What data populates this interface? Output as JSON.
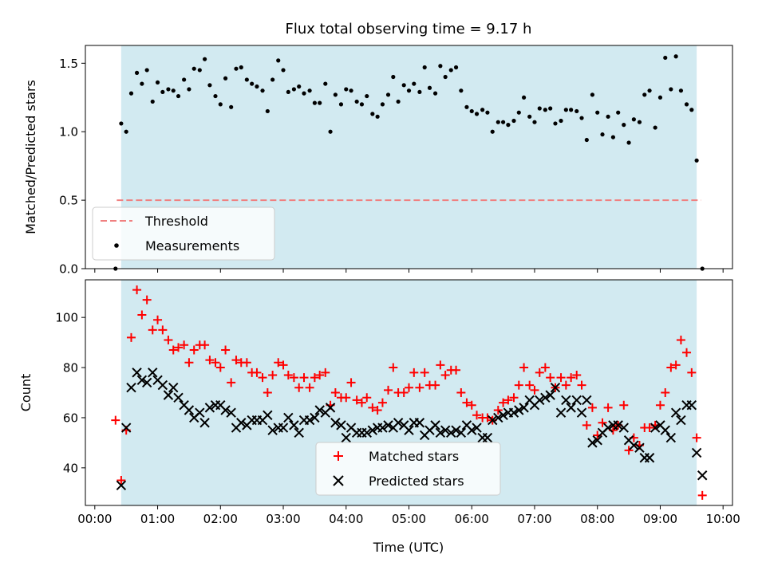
{
  "chart_data": {
    "title": "Flux total observing time = 9.17 h",
    "xlabel": "Time (UTC)",
    "x_unit": "hours UTC",
    "xlim": [
      -0.15,
      10.15
    ],
    "x_ticks": [
      0,
      1,
      2,
      3,
      4,
      5,
      6,
      7,
      8,
      9,
      10
    ],
    "x_tick_labels": [
      "00:00",
      "01:00",
      "02:00",
      "03:00",
      "04:00",
      "05:00",
      "06:00",
      "07:00",
      "08:00",
      "09:00",
      "10:00"
    ],
    "span": {
      "start": 0.42,
      "end": 9.58,
      "color": "#add8e6"
    },
    "panels": [
      {
        "type": "scatter",
        "ylabel": "Matched/Predicted stars",
        "ylim": [
          0,
          1.63
        ],
        "y_ticks": [
          0,
          0.5,
          1.0,
          1.5
        ],
        "y_tick_labels": [
          "0.0",
          "0.5",
          "1.0",
          "1.5"
        ],
        "grid": false,
        "legend_position": "lower-left",
        "threshold": {
          "name": "Threshold",
          "y": 0.5,
          "x": [
            0.35,
            9.65
          ],
          "color": "#f08080"
        },
        "series": [
          {
            "name": "Measurements",
            "marker": "dot",
            "color": "#000000",
            "x": [
              0.33,
              0.42,
              0.5,
              0.58,
              0.67,
              0.75,
              0.83,
              0.92,
              1.0,
              1.08,
              1.17,
              1.25,
              1.33,
              1.42,
              1.5,
              1.58,
              1.67,
              1.75,
              1.83,
              1.92,
              2.0,
              2.08,
              2.17,
              2.25,
              2.33,
              2.42,
              2.5,
              2.58,
              2.67,
              2.75,
              2.83,
              2.92,
              3.0,
              3.08,
              3.17,
              3.25,
              3.33,
              3.42,
              3.5,
              3.58,
              3.67,
              3.75,
              3.83,
              3.92,
              4.0,
              4.08,
              4.17,
              4.25,
              4.33,
              4.42,
              4.5,
              4.58,
              4.67,
              4.75,
              4.83,
              4.92,
              5.0,
              5.08,
              5.17,
              5.25,
              5.33,
              5.42,
              5.5,
              5.58,
              5.67,
              5.75,
              5.83,
              5.92,
              6.0,
              6.08,
              6.17,
              6.25,
              6.33,
              6.42,
              6.5,
              6.58,
              6.67,
              6.75,
              6.83,
              6.92,
              7.0,
              7.08,
              7.17,
              7.25,
              7.33,
              7.42,
              7.5,
              7.58,
              7.67,
              7.75,
              7.83,
              7.92,
              8.0,
              8.08,
              8.17,
              8.25,
              8.33,
              8.42,
              8.5,
              8.58,
              8.67,
              8.75,
              8.83,
              8.92,
              9.0,
              9.08,
              9.17,
              9.25,
              9.33,
              9.42,
              9.5,
              9.58,
              9.67
            ],
            "y": [
              0.0,
              1.06,
              1.0,
              1.28,
              1.43,
              1.35,
              1.45,
              1.22,
              1.36,
              1.29,
              1.31,
              1.3,
              1.26,
              1.38,
              1.31,
              1.46,
              1.45,
              1.53,
              1.34,
              1.26,
              1.2,
              1.39,
              1.18,
              1.46,
              1.47,
              1.38,
              1.35,
              1.33,
              1.3,
              1.15,
              1.38,
              1.52,
              1.45,
              1.29,
              1.31,
              1.33,
              1.28,
              1.3,
              1.21,
              1.21,
              1.35,
              1.0,
              1.27,
              1.2,
              1.31,
              1.3,
              1.22,
              1.2,
              1.26,
              1.13,
              1.11,
              1.2,
              1.27,
              1.4,
              1.22,
              1.34,
              1.3,
              1.35,
              1.29,
              1.47,
              1.32,
              1.28,
              1.48,
              1.4,
              1.45,
              1.47,
              1.3,
              1.18,
              1.15,
              1.13,
              1.16,
              1.14,
              1.0,
              1.07,
              1.07,
              1.05,
              1.08,
              1.14,
              1.25,
              1.11,
              1.07,
              1.17,
              1.16,
              1.17,
              1.06,
              1.08,
              1.16,
              1.16,
              1.15,
              1.1,
              0.94,
              1.27,
              1.14,
              0.98,
              1.11,
              0.96,
              1.14,
              1.05,
              0.92,
              1.09,
              1.07,
              1.27,
              1.3,
              1.03,
              1.25,
              1.54,
              1.31,
              1.55,
              1.3,
              1.2,
              1.16,
              0.79,
              0.0
            ]
          }
        ]
      },
      {
        "type": "scatter",
        "ylabel": "Count",
        "ylim": [
          25,
          115
        ],
        "y_ticks": [
          40,
          60,
          80,
          100
        ],
        "y_tick_labels": [
          "40",
          "60",
          "80",
          "100"
        ],
        "grid": false,
        "legend_position": "lower-center",
        "series": [
          {
            "name": "Matched stars",
            "marker": "plus",
            "color": "#ff0000",
            "x": [
              0.33,
              0.42,
              0.5,
              0.58,
              0.67,
              0.75,
              0.83,
              0.92,
              1.0,
              1.08,
              1.17,
              1.25,
              1.33,
              1.42,
              1.5,
              1.58,
              1.67,
              1.75,
              1.83,
              1.92,
              2.0,
              2.08,
              2.17,
              2.25,
              2.33,
              2.42,
              2.5,
              2.58,
              2.67,
              2.75,
              2.83,
              2.92,
              3.0,
              3.08,
              3.17,
              3.25,
              3.33,
              3.42,
              3.5,
              3.58,
              3.67,
              3.75,
              3.83,
              3.92,
              4.0,
              4.08,
              4.17,
              4.25,
              4.33,
              4.42,
              4.5,
              4.58,
              4.67,
              4.75,
              4.83,
              4.92,
              5.0,
              5.08,
              5.17,
              5.25,
              5.33,
              5.42,
              5.5,
              5.58,
              5.67,
              5.75,
              5.83,
              5.92,
              6.0,
              6.08,
              6.17,
              6.25,
              6.33,
              6.42,
              6.5,
              6.58,
              6.67,
              6.75,
              6.83,
              6.92,
              7.0,
              7.08,
              7.17,
              7.25,
              7.33,
              7.42,
              7.5,
              7.58,
              7.67,
              7.75,
              7.83,
              7.92,
              8.0,
              8.08,
              8.17,
              8.25,
              8.33,
              8.42,
              8.5,
              8.58,
              8.67,
              8.75,
              8.83,
              8.92,
              9.0,
              9.08,
              9.17,
              9.25,
              9.33,
              9.42,
              9.5,
              9.58,
              9.67
            ],
            "y": [
              59,
              35,
              55,
              92,
              111,
              101,
              107,
              95,
              99,
              95,
              91,
              87,
              88,
              89,
              82,
              87,
              89,
              89,
              83,
              82,
              80,
              87,
              74,
              83,
              82,
              82,
              78,
              78,
              76,
              70,
              77,
              82,
              81,
              77,
              76,
              72,
              76,
              72,
              76,
              77,
              78,
              65,
              70,
              68,
              68,
              74,
              67,
              66,
              68,
              64,
              63,
              66,
              71,
              80,
              70,
              70,
              72,
              78,
              72,
              78,
              73,
              73,
              81,
              77,
              79,
              79,
              70,
              66,
              65,
              61,
              60,
              60,
              59,
              63,
              66,
              67,
              68,
              73,
              80,
              73,
              71,
              78,
              80,
              76,
              72,
              76,
              73,
              76,
              77,
              73,
              57,
              64,
              53,
              58,
              64,
              55,
              57,
              65,
              47,
              52,
              49,
              56,
              56,
              57,
              65,
              70,
              80,
              81,
              91,
              86,
              78,
              52,
              29
            ]
          },
          {
            "name": "Predicted stars",
            "marker": "cross",
            "color": "#000000",
            "x": [
              0.33,
              0.42,
              0.5,
              0.58,
              0.67,
              0.75,
              0.83,
              0.92,
              1.0,
              1.08,
              1.17,
              1.25,
              1.33,
              1.42,
              1.5,
              1.58,
              1.67,
              1.75,
              1.83,
              1.92,
              2.0,
              2.08,
              2.17,
              2.25,
              2.33,
              2.42,
              2.5,
              2.58,
              2.67,
              2.75,
              2.83,
              2.92,
              3.0,
              3.08,
              3.17,
              3.25,
              3.33,
              3.42,
              3.5,
              3.58,
              3.67,
              3.75,
              3.83,
              3.92,
              4.0,
              4.08,
              4.17,
              4.25,
              4.33,
              4.42,
              4.5,
              4.58,
              4.67,
              4.75,
              4.83,
              4.92,
              5.0,
              5.08,
              5.17,
              5.25,
              5.33,
              5.42,
              5.5,
              5.58,
              5.67,
              5.75,
              5.83,
              5.92,
              6.0,
              6.08,
              6.17,
              6.25,
              6.33,
              6.42,
              6.5,
              6.58,
              6.67,
              6.75,
              6.83,
              6.92,
              7.0,
              7.08,
              7.17,
              7.25,
              7.33,
              7.42,
              7.5,
              7.58,
              7.67,
              7.75,
              7.83,
              7.92,
              8.0,
              8.08,
              8.17,
              8.25,
              8.33,
              8.42,
              8.5,
              8.58,
              8.67,
              8.75,
              8.83,
              8.92,
              9.0,
              9.08,
              9.17,
              9.25,
              9.33,
              9.42,
              9.5,
              9.58,
              9.67
            ],
            "y": [
              null,
              33,
              56,
              72,
              78,
              75,
              74,
              78,
              75,
              73,
              69,
              72,
              68,
              65,
              63,
              60,
              62,
              58,
              64,
              65,
              65,
              63,
              62,
              56,
              58,
              57,
              59,
              59,
              59,
              61,
              55,
              56,
              56,
              60,
              57,
              54,
              59,
              59,
              60,
              63,
              62,
              64,
              58,
              57,
              52,
              56,
              54,
              54,
              54,
              55,
              56,
              56,
              57,
              56,
              58,
              57,
              55,
              58,
              58,
              53,
              55,
              57,
              54,
              55,
              54,
              55,
              54,
              57,
              55,
              56,
              52,
              52,
              59,
              60,
              61,
              62,
              62,
              63,
              64,
              67,
              65,
              67,
              68,
              69,
              72,
              62,
              67,
              64,
              67,
              62,
              67,
              50,
              51,
              54,
              56,
              57,
              57,
              56,
              51,
              49,
              48,
              44,
              44,
              56,
              57,
              55,
              52,
              62,
              59,
              65,
              65,
              46,
              37
            ]
          }
        ]
      }
    ]
  }
}
